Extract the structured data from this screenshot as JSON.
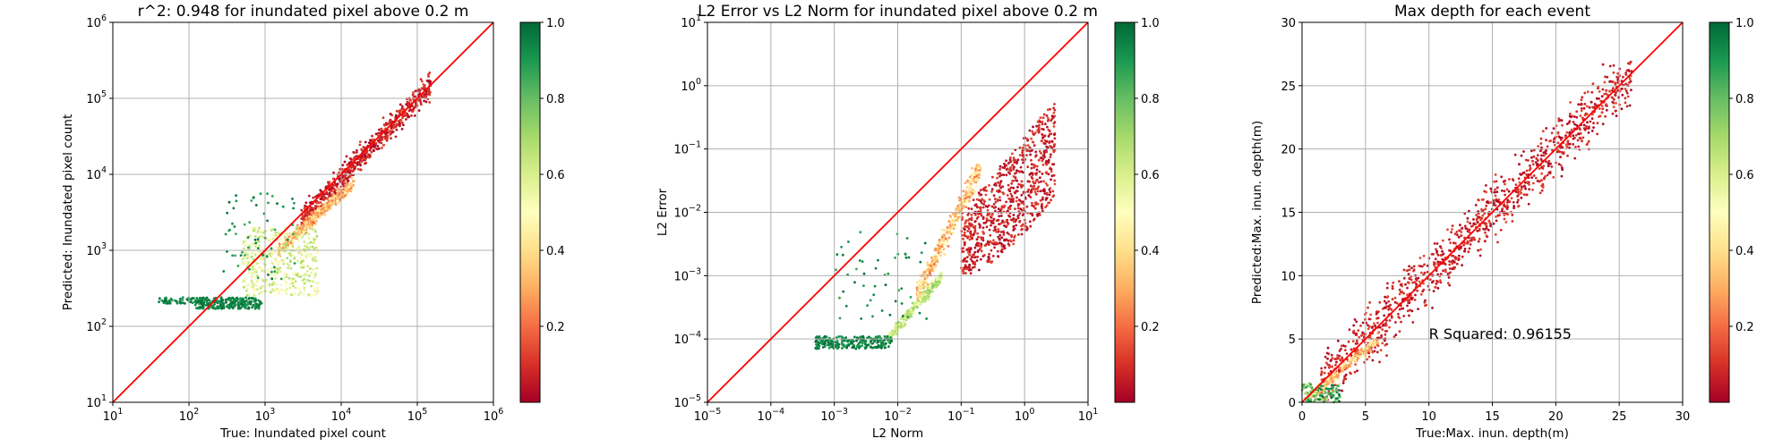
{
  "chart_data": [
    {
      "type": "scatter",
      "title": "r^2: 0.948 for inundated pixel above 0.2 m",
      "xlabel": "True: Inundated pixel count",
      "ylabel": "Predicted: Inundated pixel count",
      "xscale": "log",
      "yscale": "log",
      "xlim": [
        10,
        1000000
      ],
      "ylim": [
        10,
        1000000
      ],
      "x_ticks": [
        10,
        100,
        1000,
        10000,
        100000,
        1000000
      ],
      "y_ticks": [
        10,
        100,
        1000,
        10000,
        100000,
        1000000
      ],
      "x_tick_labels": [
        {
          "base": "10",
          "exp": "1"
        },
        {
          "base": "10",
          "exp": "2"
        },
        {
          "base": "10",
          "exp": "3"
        },
        {
          "base": "10",
          "exp": "4"
        },
        {
          "base": "10",
          "exp": "5"
        },
        {
          "base": "10",
          "exp": "6"
        }
      ],
      "y_tick_labels": [
        {
          "base": "10",
          "exp": "1"
        },
        {
          "base": "10",
          "exp": "2"
        },
        {
          "base": "10",
          "exp": "3"
        },
        {
          "base": "10",
          "exp": "4"
        },
        {
          "base": "10",
          "exp": "5"
        },
        {
          "base": "10",
          "exp": "6"
        }
      ],
      "grid": true,
      "reference_line": {
        "from": [
          10,
          10
        ],
        "to": [
          1000000,
          1000000
        ],
        "color": "#ff0000"
      },
      "color_scale": "RdYlGn",
      "colorbar": {
        "min": 0,
        "max": 1,
        "ticks": [
          "0.2",
          "0.4",
          "0.6",
          "0.8",
          "1.0"
        ],
        "tick_values": [
          0.2,
          0.4,
          0.6,
          0.8,
          1.0
        ]
      },
      "clusters": [
        {
          "x_range": [
            3000,
            150000
          ],
          "y_range": [
            2500,
            150000
          ],
          "shape": "diagonal",
          "color_value": [
            0.0,
            0.15
          ],
          "count": 700
        },
        {
          "x_range": [
            1500,
            15000
          ],
          "y_range": [
            1000,
            8000
          ],
          "shape": "diagonal",
          "color_value": [
            0.2,
            0.45
          ],
          "count": 450
        },
        {
          "x_range": [
            500,
            5000
          ],
          "y_range": [
            250,
            2000
          ],
          "shape": "box",
          "color_value": [
            0.45,
            0.7
          ],
          "count": 450
        },
        {
          "x_range": [
            120,
            900
          ],
          "y_range": [
            170,
            240
          ],
          "shape": "box",
          "color_value": [
            0.88,
            1.0
          ],
          "count": 260
        },
        {
          "x_range": [
            40,
            150
          ],
          "y_range": [
            200,
            240
          ],
          "shape": "box",
          "color_value": [
            0.88,
            1.0
          ],
          "count": 50
        },
        {
          "x_range": [
            250,
            2500
          ],
          "y_range": [
            400,
            6000
          ],
          "shape": "box",
          "color_value": [
            0.85,
            1.0
          ],
          "count": 60
        }
      ]
    },
    {
      "type": "scatter",
      "title": "L2 Error vs L2 Norm for inundated pixel above 0.2 m",
      "xlabel": "L2 Norm",
      "ylabel": "L2 Error",
      "xscale": "log",
      "yscale": "log",
      "xlim": [
        1e-05,
        10
      ],
      "ylim": [
        1e-05,
        10
      ],
      "x_ticks": [
        1e-05,
        0.0001,
        0.001,
        0.01,
        0.1,
        1,
        10
      ],
      "y_ticks": [
        1e-05,
        0.0001,
        0.001,
        0.01,
        0.1,
        1,
        10
      ],
      "x_tick_labels": [
        {
          "base": "10",
          "exp": "−5"
        },
        {
          "base": "10",
          "exp": "−4"
        },
        {
          "base": "10",
          "exp": "−3"
        },
        {
          "base": "10",
          "exp": "−2"
        },
        {
          "base": "10",
          "exp": "−1"
        },
        {
          "base": "10",
          "exp": "0"
        },
        {
          "base": "10",
          "exp": "1"
        }
      ],
      "y_tick_labels": [
        {
          "base": "10",
          "exp": "−5"
        },
        {
          "base": "10",
          "exp": "−4"
        },
        {
          "base": "10",
          "exp": "−3"
        },
        {
          "base": "10",
          "exp": "−2"
        },
        {
          "base": "10",
          "exp": "−1"
        },
        {
          "base": "10",
          "exp": "0"
        },
        {
          "base": "10",
          "exp": "1"
        }
      ],
      "grid": true,
      "reference_line": {
        "from": [
          1e-05,
          1e-05
        ],
        "to": [
          10,
          10
        ],
        "color": "#ff0000"
      },
      "color_scale": "RdYlGn",
      "colorbar": {
        "min": 0,
        "max": 1,
        "ticks": [
          "0.2",
          "0.4",
          "0.6",
          "0.8",
          "1.0"
        ],
        "tick_values": [
          0.2,
          0.4,
          0.6,
          0.8,
          1.0
        ]
      },
      "clusters": [
        {
          "x_range": [
            0.1,
            3
          ],
          "y_range": [
            0.001,
            0.6
          ],
          "shape": "wedge",
          "color_value": [
            0.0,
            0.15
          ],
          "count": 800
        },
        {
          "x_range": [
            0.02,
            0.2
          ],
          "y_range": [
            0.0005,
            0.05
          ],
          "shape": "diagonal",
          "color_value": [
            0.2,
            0.5
          ],
          "count": 400
        },
        {
          "x_range": [
            0.007,
            0.05
          ],
          "y_range": [
            0.0001,
            0.001
          ],
          "shape": "diagonal",
          "color_value": [
            0.5,
            0.75
          ],
          "count": 300
        },
        {
          "x_range": [
            0.0005,
            0.008
          ],
          "y_range": [
            7e-05,
            0.00011
          ],
          "shape": "box",
          "color_value": [
            0.88,
            1.0
          ],
          "count": 260
        },
        {
          "x_range": [
            0.001,
            0.03
          ],
          "y_range": [
            0.0002,
            0.006
          ],
          "shape": "box",
          "color_value": [
            0.85,
            1.0
          ],
          "count": 50
        }
      ]
    },
    {
      "type": "scatter",
      "title": "Max depth for each event",
      "xlabel": "True:Max. inun. depth(m)",
      "ylabel": "Predicted:Max. inun. depth(m)",
      "xscale": "linear",
      "yscale": "linear",
      "xlim": [
        0,
        30
      ],
      "ylim": [
        0,
        30
      ],
      "x_ticks": [
        0,
        5,
        10,
        15,
        20,
        25,
        30
      ],
      "y_ticks": [
        0,
        5,
        10,
        15,
        20,
        25,
        30
      ],
      "x_tick_labels": [
        {
          "base": "0"
        },
        {
          "base": "5"
        },
        {
          "base": "10"
        },
        {
          "base": "15"
        },
        {
          "base": "20"
        },
        {
          "base": "25"
        },
        {
          "base": "30"
        }
      ],
      "y_tick_labels": [
        {
          "base": "0"
        },
        {
          "base": "5"
        },
        {
          "base": "10"
        },
        {
          "base": "15"
        },
        {
          "base": "20"
        },
        {
          "base": "25"
        },
        {
          "base": "30"
        }
      ],
      "grid": true,
      "reference_line": {
        "from": [
          0,
          0
        ],
        "to": [
          30,
          30
        ],
        "color": "#ff0000"
      },
      "color_scale": "RdYlGn",
      "colorbar": {
        "min": 0,
        "max": 1,
        "ticks": [
          "0.2",
          "0.4",
          "0.6",
          "0.8",
          "1.0"
        ],
        "tick_values": [
          0.2,
          0.4,
          0.6,
          0.8,
          1.0
        ]
      },
      "annotation": {
        "text": "R Squared: 0.96155",
        "x": 10,
        "y": 5
      },
      "clusters": [
        {
          "x_range": [
            1.5,
            26
          ],
          "y_range": [
            1.5,
            26
          ],
          "shape": "diagonal",
          "color_value": [
            0.0,
            0.15
          ],
          "count": 1100
        },
        {
          "x_range": [
            0.5,
            6
          ],
          "y_range": [
            0.3,
            5
          ],
          "shape": "diagonal",
          "color_value": [
            0.2,
            0.5
          ],
          "count": 220
        },
        {
          "x_range": [
            0,
            3
          ],
          "y_range": [
            0,
            1.5
          ],
          "shape": "box",
          "color_value": [
            0.6,
            1.0
          ],
          "count": 120
        }
      ]
    }
  ]
}
